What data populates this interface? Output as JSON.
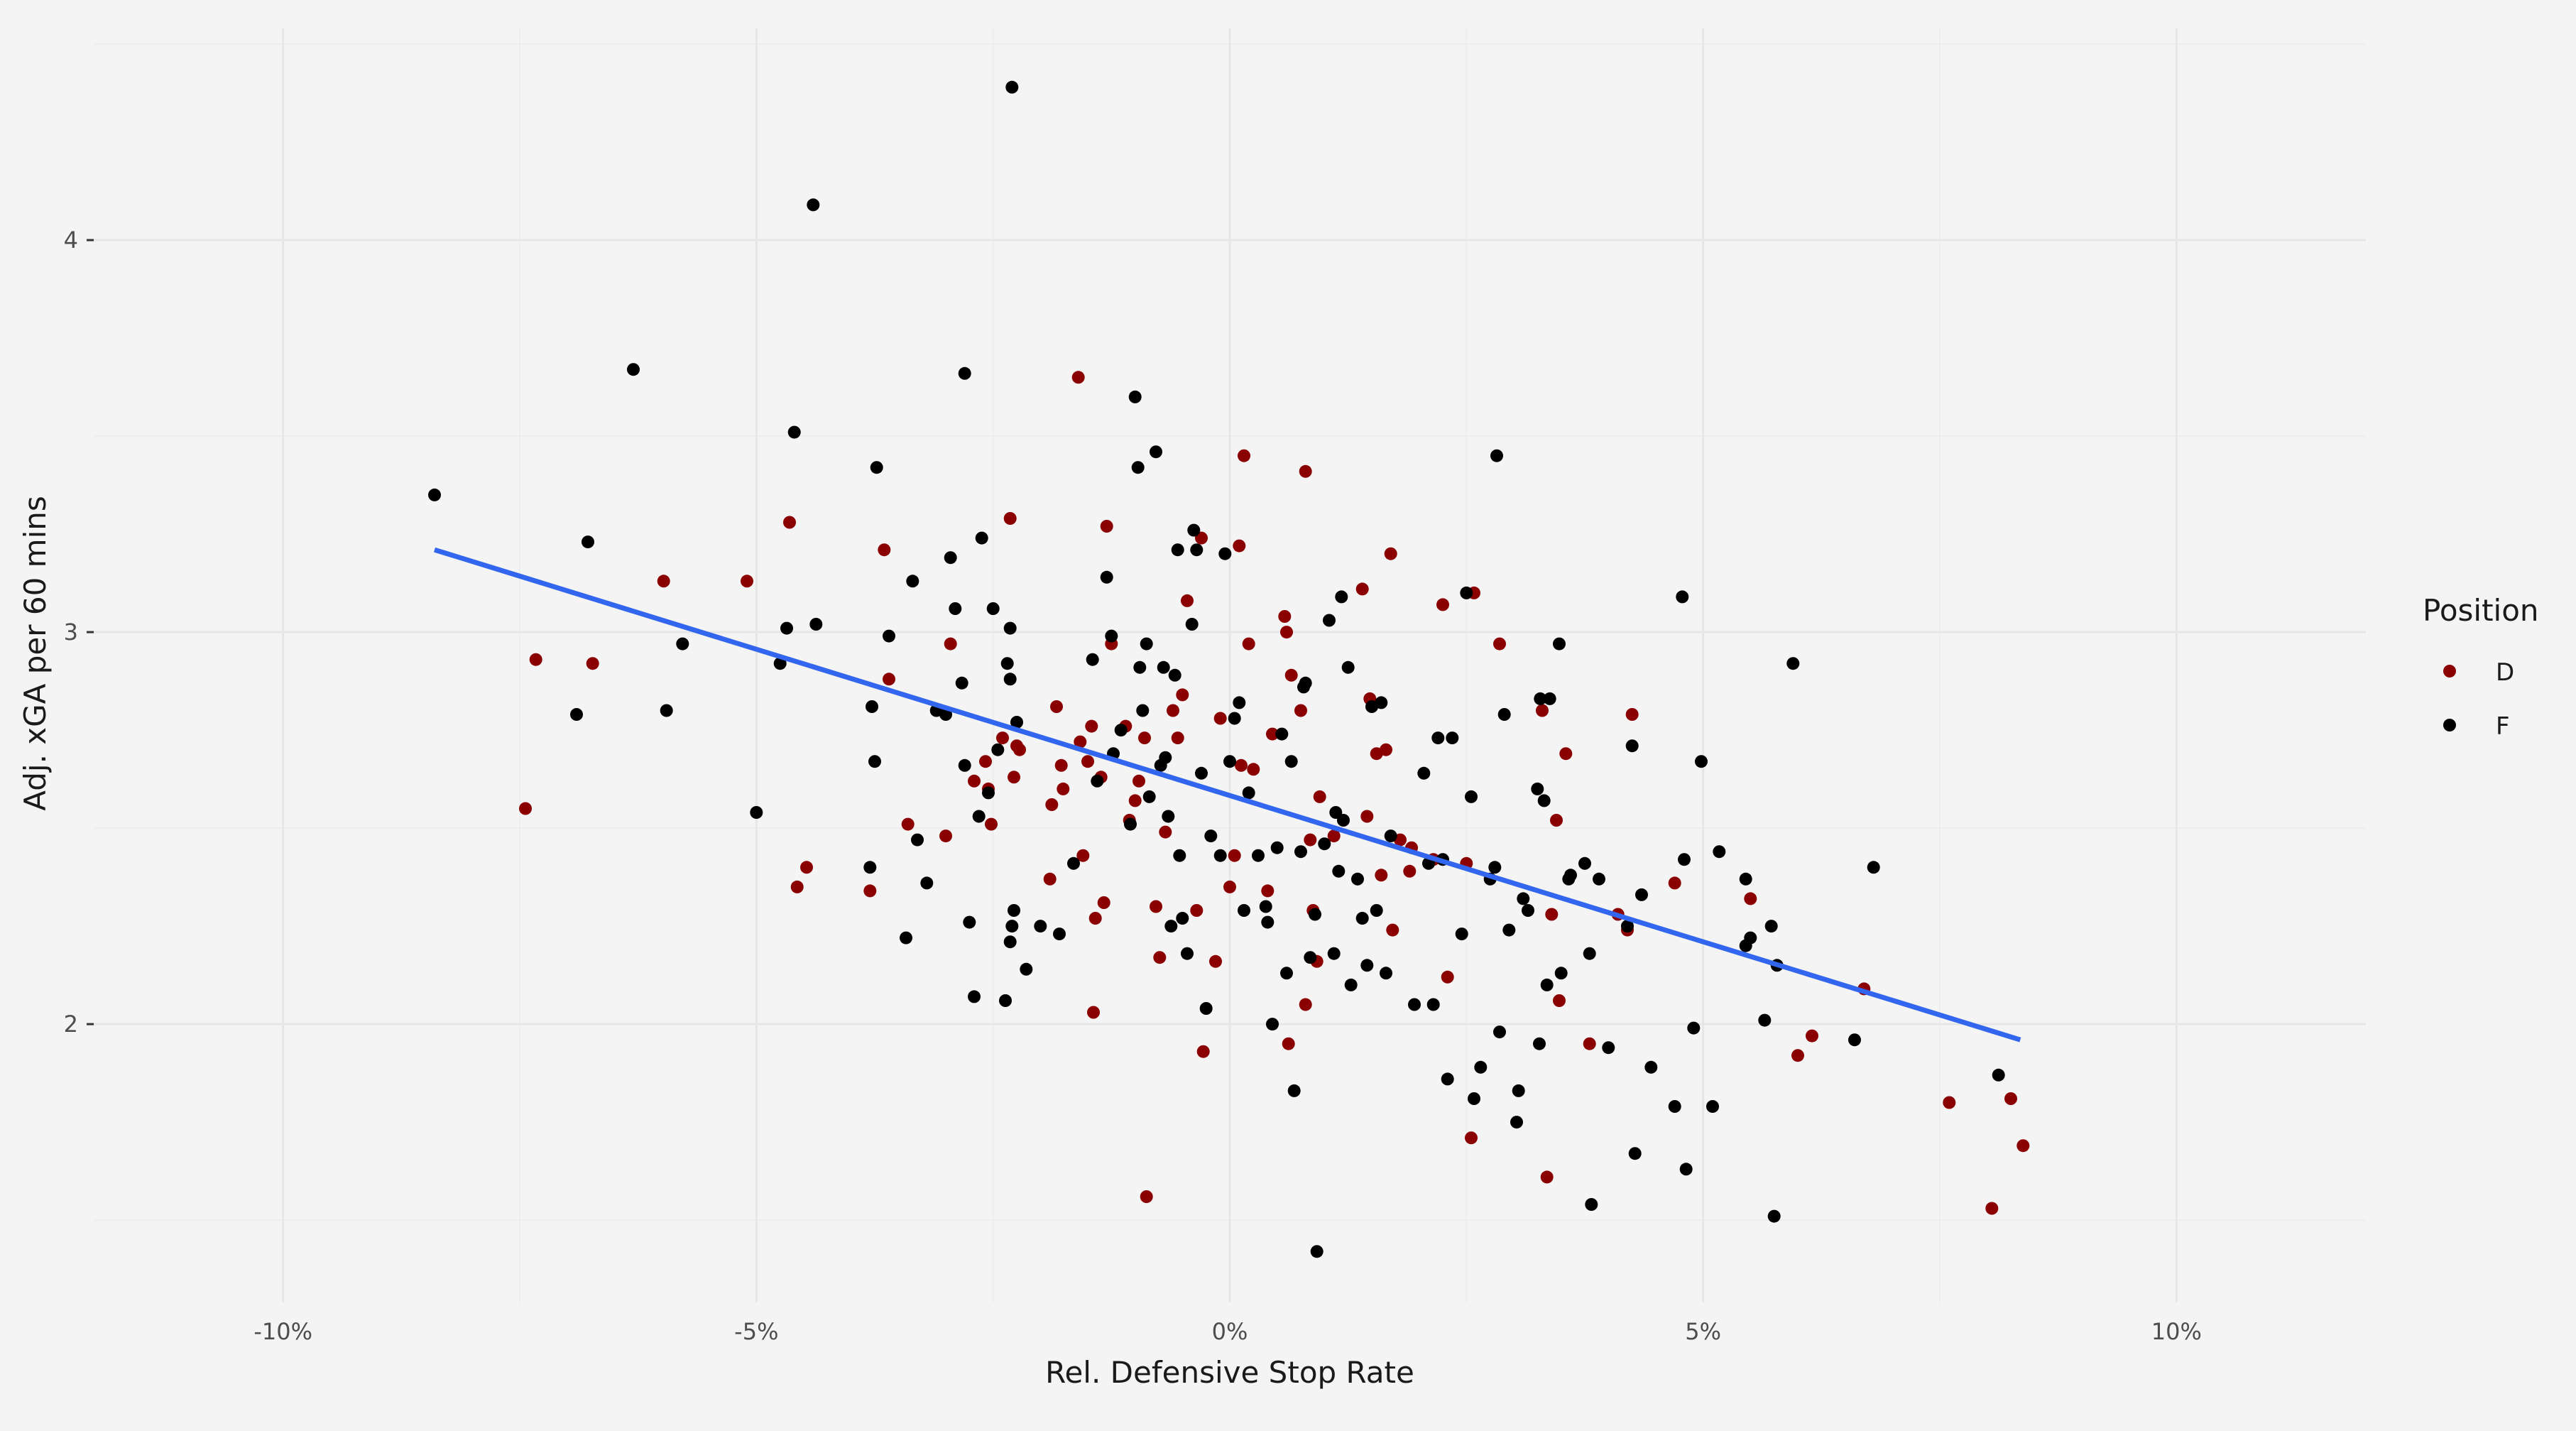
{
  "chart_data": {
    "type": "scatter",
    "xlabel": "Rel. Defensive Stop Rate",
    "ylabel": "Adj. xGA per 60 mins",
    "xlim": [
      -0.12,
      0.12
    ],
    "ylim": [
      1.29,
      4.54
    ],
    "x_ticks": [
      -0.1,
      -0.05,
      0.0,
      0.05,
      0.1
    ],
    "x_tick_labels": [
      "-10%",
      "-5%",
      "0%",
      "5%",
      "10%"
    ],
    "y_ticks": [
      2,
      3,
      4
    ],
    "y_tick_labels": [
      "2",
      "3",
      "4"
    ],
    "grid": true,
    "legend": {
      "title": "Position",
      "placement": "right"
    },
    "colors": {
      "D": "#8b0000",
      "F": "#000000",
      "trend": "#3366ee",
      "background": "#f4f4f4"
    },
    "trend_line": {
      "x": [
        -0.084,
        0.0835
      ],
      "y": [
        3.21,
        1.96
      ]
    },
    "series": [
      {
        "name": "D",
        "color": "#8b0000",
        "points": [
          [
            -0.0744,
            2.55
          ],
          [
            -0.0733,
            2.93
          ],
          [
            -0.0673,
            2.92
          ],
          [
            -0.0598,
            3.13
          ],
          [
            -0.051,
            3.13
          ],
          [
            -0.0465,
            3.28
          ],
          [
            -0.0457,
            2.35
          ],
          [
            -0.0447,
            2.4
          ],
          [
            -0.038,
            2.34
          ],
          [
            -0.0365,
            3.21
          ],
          [
            -0.036,
            2.88
          ],
          [
            -0.034,
            2.51
          ],
          [
            -0.03,
            2.48
          ],
          [
            -0.0295,
            2.97
          ],
          [
            -0.027,
            2.62
          ],
          [
            -0.0258,
            2.67
          ],
          [
            -0.0255,
            2.6
          ],
          [
            -0.0252,
            2.51
          ],
          [
            -0.024,
            2.73
          ],
          [
            -0.0232,
            3.29
          ],
          [
            -0.0228,
            2.63
          ],
          [
            -0.0225,
            2.71
          ],
          [
            -0.0222,
            2.7
          ],
          [
            -0.019,
            2.37
          ],
          [
            -0.0188,
            2.56
          ],
          [
            -0.0183,
            2.81
          ],
          [
            -0.0178,
            2.66
          ],
          [
            -0.0176,
            2.6
          ],
          [
            -0.016,
            3.65
          ],
          [
            -0.0158,
            2.72
          ],
          [
            -0.0155,
            2.43
          ],
          [
            -0.015,
            2.67
          ],
          [
            -0.0146,
            2.76
          ],
          [
            -0.0144,
            2.03
          ],
          [
            -0.0142,
            2.27
          ],
          [
            -0.0136,
            2.63
          ],
          [
            -0.0133,
            2.31
          ],
          [
            -0.013,
            3.27
          ],
          [
            -0.0125,
            2.97
          ],
          [
            -0.011,
            2.76
          ],
          [
            -0.0106,
            2.52
          ],
          [
            -0.01,
            2.57
          ],
          [
            -0.0096,
            2.62
          ],
          [
            -0.009,
            2.73
          ],
          [
            -0.0088,
            1.56
          ],
          [
            -0.0078,
            2.3
          ],
          [
            -0.0074,
            2.17
          ],
          [
            -0.0068,
            2.49
          ],
          [
            -0.006,
            2.8
          ],
          [
            -0.0055,
            2.73
          ],
          [
            -0.005,
            2.84
          ],
          [
            -0.0045,
            3.08
          ],
          [
            -0.0035,
            2.29
          ],
          [
            -0.003,
            3.24
          ],
          [
            -0.0028,
            1.93
          ],
          [
            -0.0015,
            2.16
          ],
          [
            -0.001,
            2.78
          ],
          [
            0.0,
            2.35
          ],
          [
            0.0005,
            2.43
          ],
          [
            0.001,
            3.22
          ],
          [
            0.0012,
            2.66
          ],
          [
            0.0015,
            3.45
          ],
          [
            0.002,
            2.97
          ],
          [
            0.0025,
            2.65
          ],
          [
            0.004,
            2.34
          ],
          [
            0.0045,
            2.74
          ],
          [
            0.0058,
            3.04
          ],
          [
            0.006,
            3.0
          ],
          [
            0.0062,
            1.95
          ],
          [
            0.0065,
            2.89
          ],
          [
            0.0075,
            2.8
          ],
          [
            0.008,
            3.41
          ],
          [
            0.008,
            2.05
          ],
          [
            0.0085,
            2.47
          ],
          [
            0.0088,
            2.29
          ],
          [
            0.0092,
            2.16
          ],
          [
            0.0095,
            2.58
          ],
          [
            0.011,
            2.48
          ],
          [
            0.014,
            3.11
          ],
          [
            0.0145,
            2.53
          ],
          [
            0.0148,
            2.83
          ],
          [
            0.0155,
            2.69
          ],
          [
            0.016,
            2.38
          ],
          [
            0.0165,
            2.7
          ],
          [
            0.017,
            3.2
          ],
          [
            0.0172,
            2.24
          ],
          [
            0.018,
            2.47
          ],
          [
            0.019,
            2.39
          ],
          [
            0.0192,
            2.45
          ],
          [
            0.0215,
            2.42
          ],
          [
            0.0225,
            3.07
          ],
          [
            0.023,
            2.12
          ],
          [
            0.025,
            2.41
          ],
          [
            0.0255,
            1.71
          ],
          [
            0.0258,
            3.1
          ],
          [
            0.0285,
            2.97
          ],
          [
            0.033,
            2.8
          ],
          [
            0.0335,
            1.61
          ],
          [
            0.034,
            2.28
          ],
          [
            0.0345,
            2.52
          ],
          [
            0.0348,
            2.06
          ],
          [
            0.0355,
            2.69
          ],
          [
            0.038,
            1.95
          ],
          [
            0.041,
            2.28
          ],
          [
            0.042,
            2.24
          ],
          [
            0.0425,
            2.79
          ],
          [
            0.047,
            2.36
          ],
          [
            0.055,
            2.32
          ],
          [
            0.06,
            1.92
          ],
          [
            0.0615,
            1.97
          ],
          [
            0.067,
            2.09
          ],
          [
            0.076,
            1.8
          ],
          [
            0.0805,
            1.53
          ],
          [
            0.0825,
            1.81
          ],
          [
            0.0838,
            1.69
          ]
        ]
      },
      {
        "name": "F",
        "color": "#000000",
        "points": [
          [
            -0.084,
            3.35
          ],
          [
            -0.069,
            2.79
          ],
          [
            -0.0678,
            3.23
          ],
          [
            -0.063,
            3.67
          ],
          [
            -0.0578,
            2.97
          ],
          [
            -0.0595,
            2.8
          ],
          [
            -0.05,
            2.54
          ],
          [
            -0.0475,
            2.92
          ],
          [
            -0.0468,
            3.01
          ],
          [
            -0.046,
            3.51
          ],
          [
            -0.044,
            4.09
          ],
          [
            -0.0437,
            3.02
          ],
          [
            -0.038,
            2.4
          ],
          [
            -0.0378,
            2.81
          ],
          [
            -0.0375,
            2.67
          ],
          [
            -0.0373,
            3.42
          ],
          [
            -0.036,
            2.99
          ],
          [
            -0.0342,
            2.22
          ],
          [
            -0.0335,
            3.13
          ],
          [
            -0.033,
            2.47
          ],
          [
            -0.032,
            2.36
          ],
          [
            -0.031,
            2.8
          ],
          [
            -0.03,
            2.79
          ],
          [
            -0.0295,
            3.19
          ],
          [
            -0.029,
            3.06
          ],
          [
            -0.0283,
            2.87
          ],
          [
            -0.028,
            2.66
          ],
          [
            -0.028,
            3.66
          ],
          [
            -0.0275,
            2.26
          ],
          [
            -0.027,
            2.07
          ],
          [
            -0.0265,
            2.53
          ],
          [
            -0.0262,
            3.24
          ],
          [
            -0.0255,
            2.59
          ],
          [
            -0.025,
            3.06
          ],
          [
            -0.0245,
            2.7
          ],
          [
            -0.0237,
            2.06
          ],
          [
            -0.0235,
            2.92
          ],
          [
            -0.0232,
            2.21
          ],
          [
            -0.023,
            2.25
          ],
          [
            -0.0228,
            2.29
          ],
          [
            -0.0232,
            3.01
          ],
          [
            -0.0232,
            2.88
          ],
          [
            -0.023,
            4.39
          ],
          [
            -0.0225,
            2.77
          ],
          [
            -0.0215,
            2.14
          ],
          [
            -0.02,
            2.25
          ],
          [
            -0.018,
            2.23
          ],
          [
            -0.0165,
            2.41
          ],
          [
            -0.0145,
            2.93
          ],
          [
            -0.014,
            2.62
          ],
          [
            -0.013,
            3.14
          ],
          [
            -0.0125,
            2.99
          ],
          [
            -0.0123,
            2.69
          ],
          [
            -0.0115,
            2.75
          ],
          [
            -0.0105,
            2.51
          ],
          [
            -0.01,
            3.6
          ],
          [
            -0.0097,
            3.42
          ],
          [
            -0.0095,
            2.91
          ],
          [
            -0.0092,
            2.8
          ],
          [
            -0.0088,
            2.97
          ],
          [
            -0.0085,
            2.58
          ],
          [
            -0.0078,
            3.46
          ],
          [
            -0.0073,
            2.66
          ],
          [
            -0.007,
            2.91
          ],
          [
            -0.0068,
            2.68
          ],
          [
            -0.0065,
            2.53
          ],
          [
            -0.0062,
            2.25
          ],
          [
            -0.0058,
            2.89
          ],
          [
            -0.0055,
            3.21
          ],
          [
            -0.0053,
            2.43
          ],
          [
            -0.005,
            2.27
          ],
          [
            -0.0045,
            2.18
          ],
          [
            -0.004,
            3.02
          ],
          [
            -0.0038,
            3.26
          ],
          [
            -0.0035,
            3.21
          ],
          [
            -0.003,
            2.64
          ],
          [
            -0.0025,
            2.04
          ],
          [
            -0.002,
            2.48
          ],
          [
            -0.001,
            2.43
          ],
          [
            -0.0005,
            3.2
          ],
          [
            0.0,
            2.67
          ],
          [
            0.0005,
            2.78
          ],
          [
            0.001,
            2.82
          ],
          [
            0.0015,
            2.29
          ],
          [
            0.002,
            2.59
          ],
          [
            0.003,
            2.43
          ],
          [
            0.0038,
            2.3
          ],
          [
            0.004,
            2.26
          ],
          [
            0.0045,
            2.0
          ],
          [
            0.005,
            2.45
          ],
          [
            0.0055,
            2.74
          ],
          [
            0.006,
            2.13
          ],
          [
            0.0065,
            2.67
          ],
          [
            0.0068,
            1.83
          ],
          [
            0.0075,
            2.44
          ],
          [
            0.0078,
            2.86
          ],
          [
            0.008,
            2.87
          ],
          [
            0.0085,
            2.17
          ],
          [
            0.009,
            2.28
          ],
          [
            0.0092,
            1.42
          ],
          [
            0.01,
            2.46
          ],
          [
            0.0105,
            3.03
          ],
          [
            0.011,
            2.18
          ],
          [
            0.0112,
            2.54
          ],
          [
            0.0115,
            2.39
          ],
          [
            0.0118,
            3.09
          ],
          [
            0.012,
            2.52
          ],
          [
            0.0125,
            2.91
          ],
          [
            0.0128,
            2.1
          ],
          [
            0.0135,
            2.37
          ],
          [
            0.014,
            2.27
          ],
          [
            0.0145,
            2.15
          ],
          [
            0.015,
            2.81
          ],
          [
            0.0155,
            2.29
          ],
          [
            0.016,
            2.82
          ],
          [
            0.0165,
            2.13
          ],
          [
            0.017,
            2.48
          ],
          [
            0.0195,
            2.05
          ],
          [
            0.0205,
            2.64
          ],
          [
            0.021,
            2.41
          ],
          [
            0.0215,
            2.05
          ],
          [
            0.022,
            2.73
          ],
          [
            0.0225,
            2.42
          ],
          [
            0.023,
            1.86
          ],
          [
            0.0235,
            2.73
          ],
          [
            0.0245,
            2.23
          ],
          [
            0.025,
            3.1
          ],
          [
            0.0255,
            2.58
          ],
          [
            0.0258,
            1.81
          ],
          [
            0.0265,
            1.89
          ],
          [
            0.0275,
            2.37
          ],
          [
            0.028,
            2.4
          ],
          [
            0.0282,
            3.45
          ],
          [
            0.0285,
            1.98
          ],
          [
            0.029,
            2.79
          ],
          [
            0.0295,
            2.24
          ],
          [
            0.0303,
            1.75
          ],
          [
            0.0305,
            1.83
          ],
          [
            0.031,
            2.32
          ],
          [
            0.0315,
            2.29
          ],
          [
            0.0325,
            2.6
          ],
          [
            0.0327,
            1.95
          ],
          [
            0.0328,
            2.83
          ],
          [
            0.0332,
            2.57
          ],
          [
            0.0335,
            2.1
          ],
          [
            0.0338,
            2.83
          ],
          [
            0.0348,
            2.97
          ],
          [
            0.035,
            2.13
          ],
          [
            0.0358,
            2.37
          ],
          [
            0.036,
            2.38
          ],
          [
            0.0375,
            2.41
          ],
          [
            0.038,
            2.18
          ],
          [
            0.0382,
            1.54
          ],
          [
            0.039,
            2.37
          ],
          [
            0.04,
            1.94
          ],
          [
            0.042,
            2.25
          ],
          [
            0.0425,
            2.71
          ],
          [
            0.0428,
            1.67
          ],
          [
            0.0435,
            2.33
          ],
          [
            0.0445,
            1.89
          ],
          [
            0.047,
            1.79
          ],
          [
            0.048,
            2.42
          ],
          [
            0.0482,
            1.63
          ],
          [
            0.049,
            1.99
          ],
          [
            0.0498,
            2.67
          ],
          [
            0.051,
            1.79
          ],
          [
            0.0517,
            2.44
          ],
          [
            0.0545,
            2.37
          ],
          [
            0.0545,
            2.2
          ],
          [
            0.055,
            2.22
          ],
          [
            0.0565,
            2.01
          ],
          [
            0.0572,
            2.25
          ],
          [
            0.0575,
            1.51
          ],
          [
            0.0578,
            2.15
          ],
          [
            0.0595,
            2.92
          ],
          [
            0.066,
            1.96
          ],
          [
            0.068,
            2.4
          ],
          [
            0.0812,
            1.87
          ],
          [
            0.0478,
            3.09
          ]
        ]
      }
    ]
  }
}
